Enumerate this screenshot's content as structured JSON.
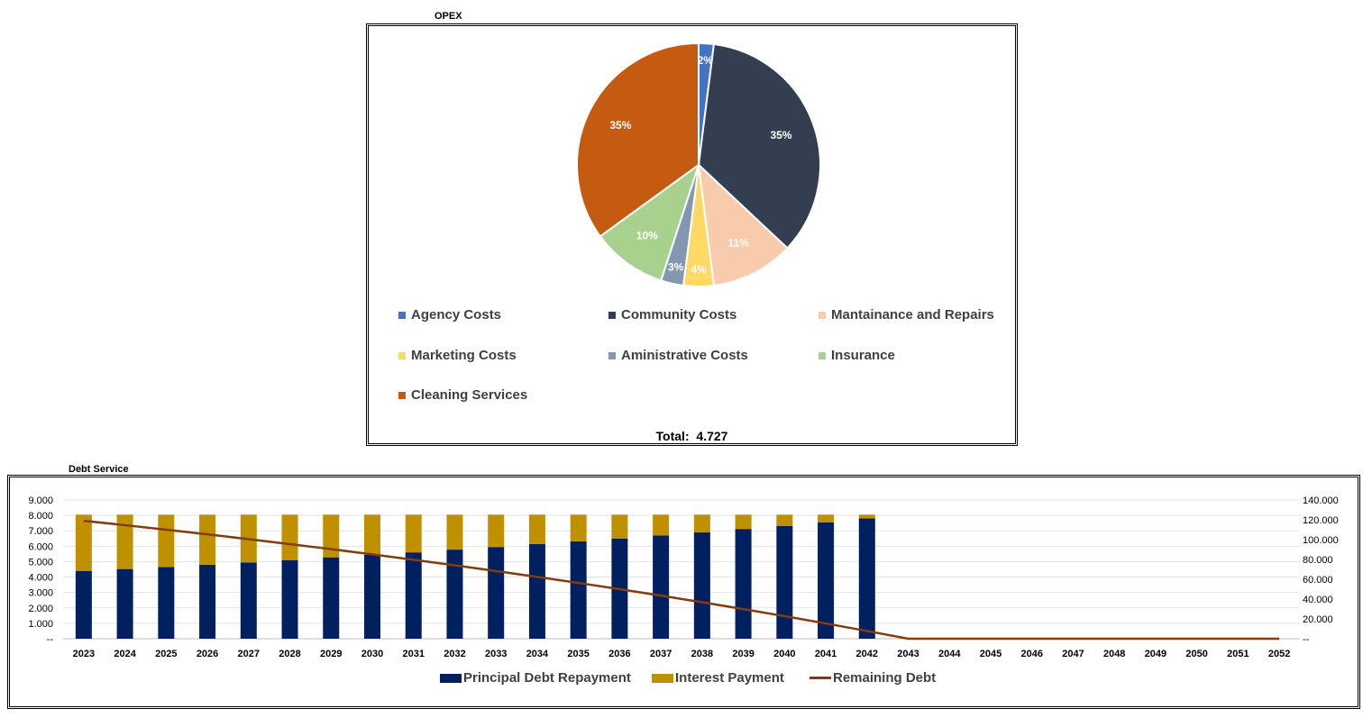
{
  "charts_meta": {
    "pie_title": "OPEX",
    "pie_total_label": "Total:",
    "pie_total_value": "4.727",
    "bar_title": "Debt Service"
  },
  "chart_data": [
    {
      "type": "pie",
      "title": "OPEX",
      "labels": [
        "Agency Costs",
        "Community Costs",
        "Mantainance and Repairs",
        "Marketing Costs",
        "Aministrative Costs",
        "Insurance",
        "Cleaning Services"
      ],
      "values": [
        2,
        35,
        11,
        4,
        3,
        10,
        35
      ],
      "data_labels": [
        "2%",
        "35%",
        "11%",
        "4%",
        "3%",
        "10%",
        "35%"
      ],
      "colors": [
        "#4472C4",
        "#333F50",
        "#F8CBAD",
        "#FFD966",
        "#8497B0",
        "#A9D18E",
        "#C55A11"
      ],
      "total": "4.727"
    },
    {
      "type": "bar",
      "stacked": true,
      "title": "Debt Service",
      "categories": [
        "2023",
        "2024",
        "2025",
        "2026",
        "2027",
        "2028",
        "2029",
        "2030",
        "2031",
        "2032",
        "2033",
        "2034",
        "2035",
        "2036",
        "2037",
        "2038",
        "2039",
        "2040",
        "2041",
        "2042",
        "2043",
        "2044",
        "2045",
        "2046",
        "2047",
        "2048",
        "2049",
        "2050",
        "2051",
        "2052"
      ],
      "series": [
        {
          "name": "Principal Debt Repayment",
          "type": "bar",
          "axis": "left",
          "color": "#002060",
          "values": [
            4400,
            4520,
            4650,
            4800,
            4950,
            5100,
            5280,
            5440,
            5600,
            5780,
            5950,
            6140,
            6320,
            6500,
            6700,
            6900,
            7120,
            7320,
            7550,
            7800,
            0,
            0,
            0,
            0,
            0,
            0,
            0,
            0,
            0,
            0
          ]
        },
        {
          "name": "Interest Payment",
          "type": "bar",
          "axis": "left",
          "color": "#BF9000",
          "values": [
            3650,
            3530,
            3400,
            3250,
            3100,
            2950,
            2770,
            2610,
            2450,
            2270,
            2100,
            1910,
            1730,
            1550,
            1350,
            1150,
            930,
            730,
            500,
            250,
            0,
            0,
            0,
            0,
            0,
            0,
            0,
            0,
            0,
            0
          ]
        },
        {
          "name": "Remaining Debt",
          "type": "line",
          "axis": "right",
          "color": "#843C0C",
          "values": [
            119000,
            114600,
            110000,
            105300,
            100500,
            95500,
            90400,
            85100,
            79700,
            74100,
            68300,
            62400,
            56300,
            50000,
            43500,
            36800,
            29900,
            22800,
            15400,
            7800,
            0,
            0,
            0,
            0,
            0,
            0,
            0,
            0,
            0,
            0
          ]
        }
      ],
      "y_left": {
        "ylim": [
          0,
          9000
        ],
        "ticks": [
          "--",
          "1.000",
          "2.000",
          "3.000",
          "4.000",
          "5.000",
          "6.000",
          "7.000",
          "8.000",
          "9.000"
        ]
      },
      "y_right": {
        "ylim": [
          0,
          140000
        ],
        "ticks": [
          "--",
          "20.000",
          "40.000",
          "60.000",
          "80.000",
          "100.000",
          "120.000",
          "140.000"
        ]
      },
      "grid": true,
      "legend": "bottom"
    }
  ]
}
